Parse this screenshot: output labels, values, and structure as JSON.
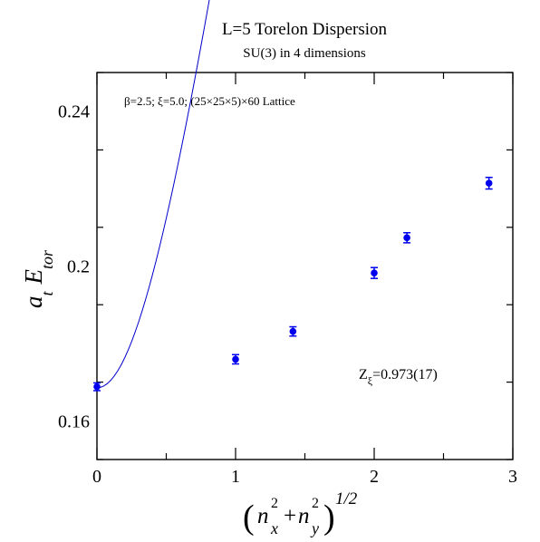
{
  "chart_data": {
    "type": "scatter",
    "title": "L=5 Torelon Dispersion",
    "subtitle": "SU(3) in 4 dimensions",
    "annotation": "β=2.5;  ξ=5.0; (25×25×5)×60 Lattice",
    "fit_label_main": "Z",
    "fit_label_sub": "ξ",
    "fit_label_value": "=0.973(17)",
    "xlabel": {
      "open": "(",
      "n1": "n",
      "sup1": "2",
      "sub1": "x",
      "plus": "+",
      "n2": "n",
      "sup2": "2",
      "sub2": "y",
      "close": ")",
      "power": "1/2"
    },
    "ylabel": {
      "main_a": "a",
      "sub_a": "t",
      "main_e": "E",
      "sub_e": "tor"
    },
    "xlim": [
      0,
      3
    ],
    "ylim": [
      0.15,
      0.25
    ],
    "x_ticks": [
      {
        "value": 0,
        "label": "0"
      },
      {
        "value": 1,
        "label": "1"
      },
      {
        "value": 2,
        "label": "2"
      },
      {
        "value": 3,
        "label": "3"
      }
    ],
    "y_ticks": [
      {
        "value": 0.16,
        "label": "0.16"
      },
      {
        "value": 0.2,
        "label": "0.2"
      },
      {
        "value": 0.24,
        "label": "0.24"
      }
    ],
    "x_minor_step": 0.5,
    "y_minor_step": 0.02,
    "marker_color": "#0000ee",
    "fit_color": "#0000cc",
    "grid": false,
    "series": [
      {
        "x": [
          0,
          1,
          1.414,
          2,
          2.236,
          2.828
        ],
        "y": [
          0.1688,
          0.1759,
          0.1831,
          0.1982,
          0.2073,
          0.2214
        ],
        "err": [
          0.001,
          0.0012,
          0.0012,
          0.0014,
          0.0013,
          0.0015
        ]
      }
    ],
    "fit": {
      "a0": 0.16852,
      "c": 5.0,
      "z": 0.973,
      "L": 5
    }
  }
}
